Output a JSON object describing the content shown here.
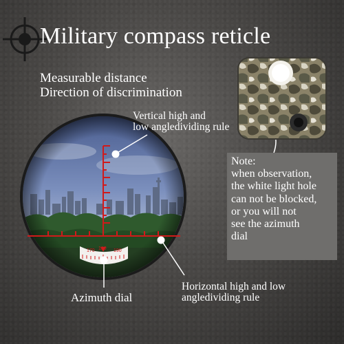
{
  "title": "Military compass reticle",
  "features": [
    "Measurable distance",
    "Direction of discrimination"
  ],
  "labels": {
    "vertical": [
      "Vertical high and",
      "low angledividing rule"
    ],
    "azimuth": "Azimuth dial",
    "horizontal": [
      "Horizontal high and low",
      "angledividing rule"
    ]
  },
  "note": {
    "lines": [
      "Note:",
      "when observation,",
      "the white light hole",
      "can not be blocked,",
      " or you will not",
      "see the azimuth",
      "dial"
    ]
  },
  "dial": {
    "numbers": [
      "170",
      "180",
      "190"
    ]
  },
  "colors": {
    "reticle": "#d11a1a",
    "note_bg": "#6f6e6c",
    "text": "#ffffff"
  },
  "icons": [
    "crosshair-icon",
    "compass-device"
  ]
}
